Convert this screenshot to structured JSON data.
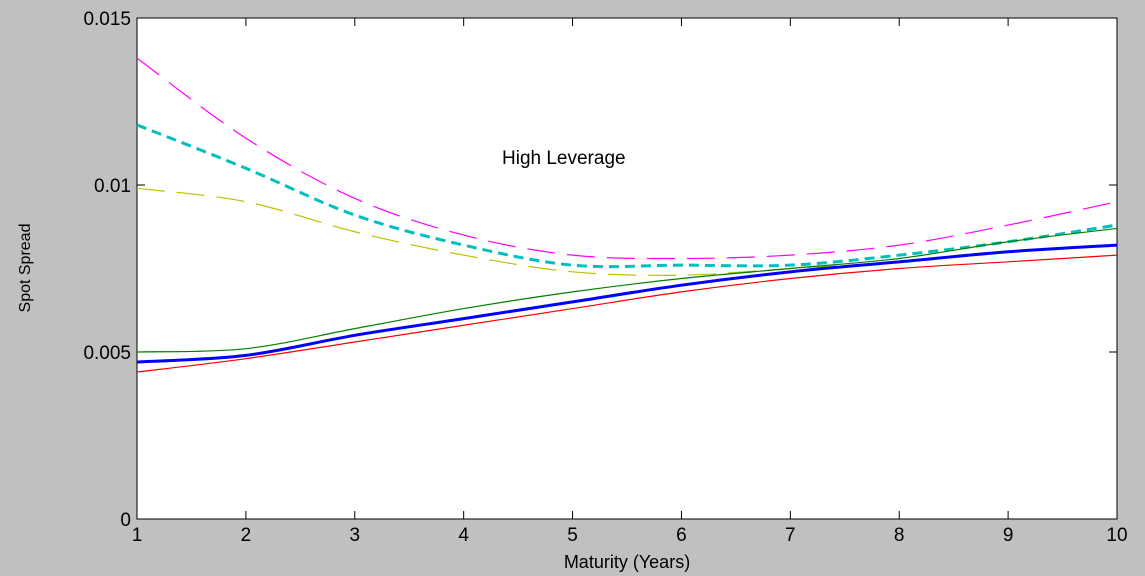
{
  "chart_data": {
    "type": "line",
    "title": "",
    "annotation": "High Leverage",
    "xlabel": "Maturity (Years)",
    "ylabel": "Spot Spread",
    "xlim": [
      1,
      10
    ],
    "ylim": [
      0,
      0.015
    ],
    "xticks": [
      1,
      2,
      3,
      4,
      5,
      6,
      7,
      8,
      9,
      10
    ],
    "yticks": [
      0,
      0.005,
      0.01,
      0.015
    ],
    "ytick_labels": [
      "0",
      "0.005",
      "0.01",
      "0.015"
    ],
    "grid": false,
    "x": [
      1,
      2,
      3,
      4,
      5,
      6,
      7,
      8,
      9,
      10
    ],
    "series": [
      {
        "color": "#ff00ff",
        "style": "dashed-long",
        "width": 1.2,
        "values": [
          0.0138,
          0.0114,
          0.0096,
          0.0085,
          0.0079,
          0.0078,
          0.0079,
          0.0082,
          0.0088,
          0.0095
        ]
      },
      {
        "color": "#00bfbf",
        "style": "dashed",
        "width": 3,
        "values": [
          0.0118,
          0.0105,
          0.0091,
          0.0082,
          0.0076,
          0.0076,
          0.0076,
          0.0079,
          0.0083,
          0.0088
        ]
      },
      {
        "color": "#bfbf00",
        "style": "dashed-long",
        "width": 1.2,
        "values": [
          0.0099,
          0.0095,
          0.0086,
          0.0079,
          0.0074,
          0.0073,
          0.0075,
          0.0077,
          0.008,
          0.0082
        ]
      },
      {
        "color": "#008000",
        "style": "solid",
        "width": 1.2,
        "values": [
          0.005,
          0.0051,
          0.0057,
          0.0063,
          0.0068,
          0.0072,
          0.0075,
          0.0078,
          0.0083,
          0.0087
        ]
      },
      {
        "color": "#0000ff",
        "style": "solid",
        "width": 3,
        "values": [
          0.0047,
          0.0049,
          0.0055,
          0.006,
          0.0065,
          0.007,
          0.0074,
          0.0077,
          0.008,
          0.0082
        ]
      },
      {
        "color": "#ff0000",
        "style": "solid",
        "width": 1.2,
        "values": [
          0.0044,
          0.0048,
          0.0053,
          0.0058,
          0.0063,
          0.0068,
          0.0072,
          0.0075,
          0.0077,
          0.0079
        ]
      }
    ]
  }
}
